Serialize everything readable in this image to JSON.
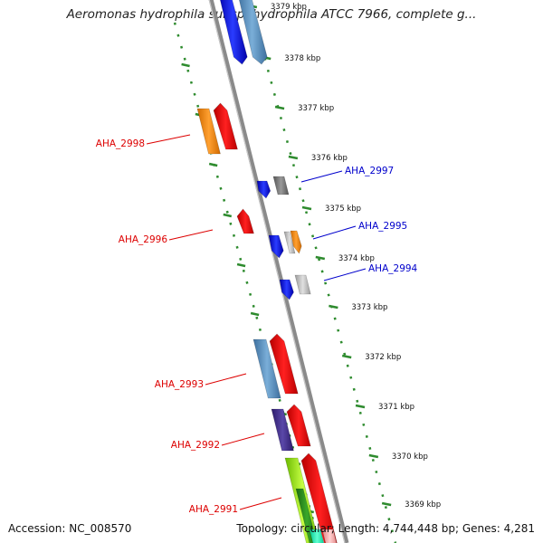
{
  "title": "Aeromonas hydrophila subsp. hydrophila ATCC 7966, complete g...",
  "footer": {
    "accession": "Accession: NC_008570",
    "stats": "Topology: circular; Length: 4,744,448 bp; Genes: 4,281"
  },
  "colors": {
    "backbone": "#8a8a8a",
    "track": "#2e8b2e",
    "label_forward": "#dd0000",
    "label_reverse": "#0000cc"
  },
  "ruler": {
    "unit": "kbp",
    "ticks": [
      "3379 kbp",
      "3378 kbp",
      "3377 kbp",
      "3376 kbp",
      "3375 kbp",
      "3374 kbp",
      "3373 kbp",
      "3372 kbp",
      "3371 kbp",
      "3370 kbp",
      "3369 kbp"
    ]
  },
  "gene_labels": [
    {
      "name": "AHA_2997",
      "strand": "reverse"
    },
    {
      "name": "AHA_2995",
      "strand": "reverse"
    },
    {
      "name": "AHA_2994",
      "strand": "reverse"
    },
    {
      "name": "AHA_2998",
      "strand": "forward"
    },
    {
      "name": "AHA_2996",
      "strand": "forward"
    },
    {
      "name": "AHA_2993",
      "strand": "forward"
    },
    {
      "name": "AHA_2992",
      "strand": "forward"
    },
    {
      "name": "AHA_2991",
      "strand": "forward"
    }
  ]
}
